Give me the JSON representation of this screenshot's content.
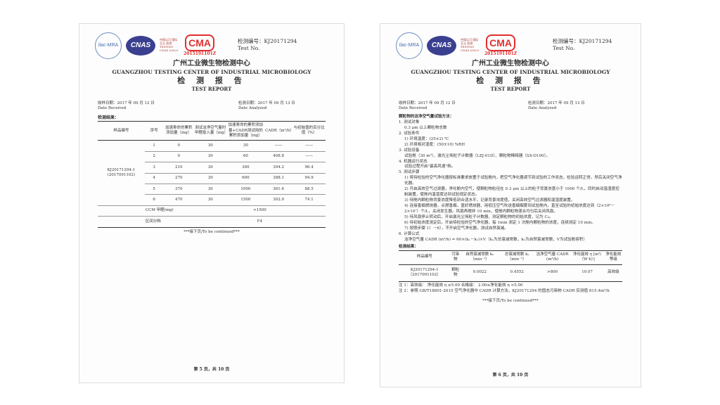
{
  "header": {
    "ilac": "ilac-MRA",
    "cnas": "CNAS",
    "cnas_text": "中国认可 国际互认 检测 TESTING CNAS L0023",
    "cma": "CMA",
    "cma_no": "2015191101Z",
    "test_no_label": "检测编号：KJ20171294",
    "test_no_en": "Test No.",
    "cn_title": "广州工业微生物检测中心",
    "en_title": "GUANGZHOU TESTING CENTER OF INDUSTRIAL MICROBIOLOGY",
    "report_cn": "检 测 报 告",
    "report_en": "TEST REPORT"
  },
  "dates": {
    "received": "收样日期：2017 年 09 月 12 日",
    "received_en": "Date Received",
    "analyzed": "检测日期：2017 年 09 月 13 日",
    "analyzed_en": "Date Analyzed"
  },
  "page1": {
    "results_label": "检测结果：",
    "columns": [
      "样品编号",
      "序号",
      "加速寿命的累积添加量（mg）",
      "测试洁净空气量时甲醛投入量（mg）",
      "加速寿命的累积添加量+CADR测试用的累积添加量（mg）",
      "CADR（m³/h）",
      "与初始值的百分比值（%）"
    ],
    "sample": "KJ20171294-1 (2017091102)",
    "rows": [
      [
        "1",
        "0",
        "30",
        "30",
        "——",
        "——"
      ],
      [
        "2",
        "0",
        "30",
        "60",
        "408.8",
        "——"
      ],
      [
        "3",
        "210",
        "30",
        "300",
        "394.2",
        "96.4"
      ],
      [
        "4",
        "270",
        "30",
        "600",
        "388.1",
        "94.9"
      ],
      [
        "5",
        "370",
        "30",
        "1000",
        "361.6",
        "88.5"
      ],
      [
        "6",
        "470",
        "30",
        "1500",
        "302.9",
        "74.1"
      ]
    ],
    "ccm_label": "CCM 甲醛(mg)",
    "ccm_value": ">1500",
    "grade_label": "区间分档",
    "grade_value": "F4",
    "continued": "***接下页/To be continued***",
    "page": "第 5 页，共 10 页"
  },
  "page2": {
    "method_title": "颗粒物的洁净空气量试验方法：",
    "lines": [
      {
        "t": "1. 测试对象",
        "c": ""
      },
      {
        "t": "0.3 μm 以上颗粒物总数",
        "c": "ind"
      },
      {
        "t": "2. 试验条件",
        "c": ""
      },
      {
        "t": "1) 环境温度：(25±2) ℃",
        "c": "ind"
      },
      {
        "t": "2) 环境相对湿度：(50±10) %RH",
        "c": "ind"
      },
      {
        "t": "3. 试验设备",
        "c": ""
      },
      {
        "t": "试验舱（30 m³）、激光尘埃粒子计数器（LZJ-01D）、颗粒物稀释器（SX-D100）。",
        "c": "ind"
      },
      {
        "t": "4. 机器运行状态",
        "c": ""
      },
      {
        "t": "试验过程开启\"最高风速\"档。",
        "c": "ind"
      },
      {
        "t": "5. 测试步骤",
        "c": ""
      },
      {
        "t": "1) 将待检验的空气净化器按标准要求放置于试验舱内，把空气净化器调节到试验的工作状态，检验运转正常，然后关闭空气净化器。",
        "c": "ind"
      },
      {
        "t": "2) 开启高效空气过滤器，净化舱内空气，使颗粒物粒径在 0.3 μm 以上的粒子背景浓度小于 1000 个/L，同时启动温湿度控制装置，使舱内温湿度达到试验规定状态。",
        "c": "ind"
      },
      {
        "t": "3) 待舱内颗粒物背景浓度降低到合适水平，记录背景浓度值，关闭高效空气过滤器和温湿度装置。",
        "c": "ind"
      },
      {
        "t": "4) 连接香烟燃烧器，点燃香烟，盖好燃烧器，用低压空气吹送香烟烟雾到试验舱内，直至试验的初始浓度达到（2×10⁶－2×10⁷）个/L，关闭发生器。风扇再搅拌 10 min，使舱内颗粒物混合均匀后关闭风扇。",
        "c": "ind"
      },
      {
        "t": "5) 待风扇停止转动后，开启激光尘埃粒子计数器，测定颗粒物的初始浓度，记为 C₀。",
        "c": "ind"
      },
      {
        "t": "6) 待初始浓度测定后，开启待检验的空气净化器，每 1min 测定 1 次舱内颗粒物的浓度，连续测定 10 min。",
        "c": "ind"
      },
      {
        "t": "7) 按照步骤 1）－6），不开启空气净化器，测试自然衰减。",
        "c": "ind"
      },
      {
        "t": "6. 计算公式",
        "c": ""
      },
      {
        "t": "洁净空气量 CADR (m³/h) = 60×(kₑ－kₙ)×V（kₑ为总衰减常数，kₙ为自然衰减常数，V为试验舱容积）",
        "c": "ind"
      }
    ],
    "results_label": "检测结果：",
    "columns": [
      "样品编号",
      "污染物",
      "自然衰减常数 kₙ（min⁻¹）",
      "总衰减常数 kₑ（min⁻¹）",
      "洁净空气量 CADR (m³/h)",
      "净化能效 η [m³/（W·h）]",
      "净化能效等级"
    ],
    "row": [
      "KJ20171294-1（2017091102）",
      "颗粒物",
      "0.0022",
      "0.4552",
      ">800",
      "10.07",
      "高效级"
    ],
    "note1": "注 1：高效级：  净化能效 η ≥5.00          合格级：  2.00≤净化能效 η <5.00",
    "note2": "注 2：参照 GB/T18801-2015 空气净化器中 CADR 计算方法，KJ20171294 的固态污染物 CADR 实测值 815.4m³/h",
    "continued": "***接下页/To be continued***",
    "page": "第 6 页，共 10 页"
  }
}
